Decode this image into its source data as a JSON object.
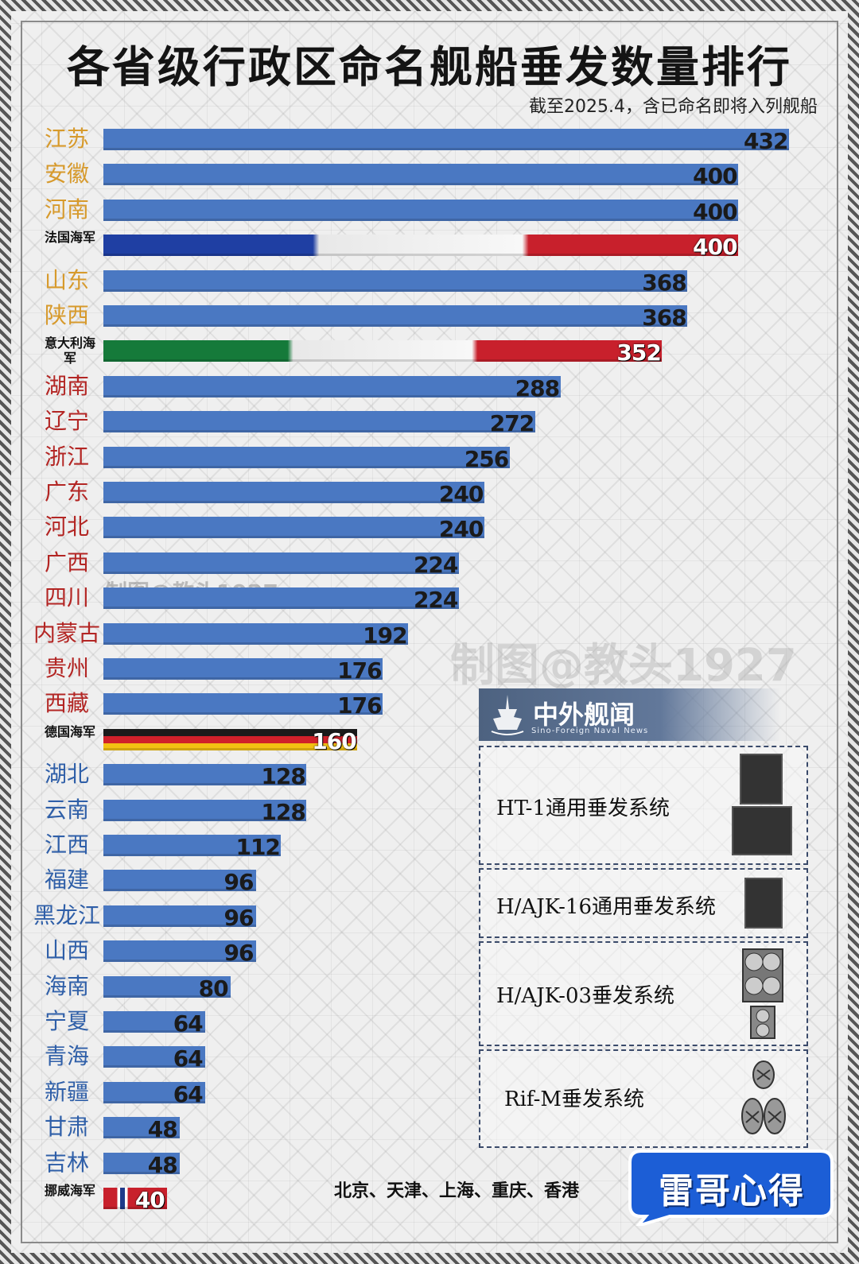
{
  "title": "各省级行政区命名舰船垂发数量排行",
  "subtitle": "截至2025.4，含已命名即将入列舰船",
  "watermark": "制图@教头1927",
  "colors": {
    "bar": "#4a78c2",
    "gold_label": "#d79a2c",
    "red_label": "#b32624",
    "blue_label": "#2f5fa8"
  },
  "chart_data": {
    "type": "bar",
    "orientation": "horizontal",
    "title": "各省级行政区命名舰船垂发数量排行",
    "xlim": [
      0,
      432
    ],
    "categories": [
      "江苏",
      "安徽",
      "河南",
      "法国海军",
      "山东",
      "陕西",
      "意大利海军",
      "湖南",
      "辽宁",
      "浙江",
      "广东",
      "河北",
      "广西",
      "四川",
      "内蒙古",
      "贵州",
      "西藏",
      "德国海军",
      "湖北",
      "云南",
      "江西",
      "福建",
      "黑龙江",
      "山西",
      "海南",
      "宁夏",
      "青海",
      "新疆",
      "甘肃",
      "吉林",
      "挪威海军"
    ],
    "values": [
      432,
      400,
      400,
      400,
      368,
      368,
      352,
      288,
      272,
      256,
      240,
      240,
      224,
      224,
      192,
      176,
      176,
      160,
      128,
      128,
      112,
      96,
      96,
      96,
      80,
      64,
      64,
      64,
      48,
      48,
      40
    ],
    "label_style": [
      "gold",
      "gold",
      "gold",
      "navy-fr",
      "gold",
      "gold",
      "navy-it",
      "red",
      "red",
      "red",
      "red",
      "red",
      "red",
      "red",
      "red",
      "red",
      "red",
      "navy-de",
      "blue",
      "blue",
      "blue",
      "blue",
      "blue",
      "blue",
      "blue",
      "blue",
      "blue",
      "blue",
      "blue",
      "blue",
      "navy-no"
    ]
  },
  "legend": {
    "brand_cn": "中外舰闻",
    "brand_en": "Sino-Foreign Naval News",
    "items": [
      {
        "label": "HT-1通用垂发系统",
        "icon": "vls-8cell-icon"
      },
      {
        "label": "H/AJK-16通用垂发系统",
        "icon": "vls-4cell-icon"
      },
      {
        "label": "H/AJK-03垂发系统",
        "icon": "vls-round-cell-icon"
      },
      {
        "label": "Rif-M垂发系统",
        "icon": "vls-revolver-icon"
      }
    ]
  },
  "footer_note": "北京、天津、上海、重庆、香港",
  "badge_text": "雷哥心得"
}
